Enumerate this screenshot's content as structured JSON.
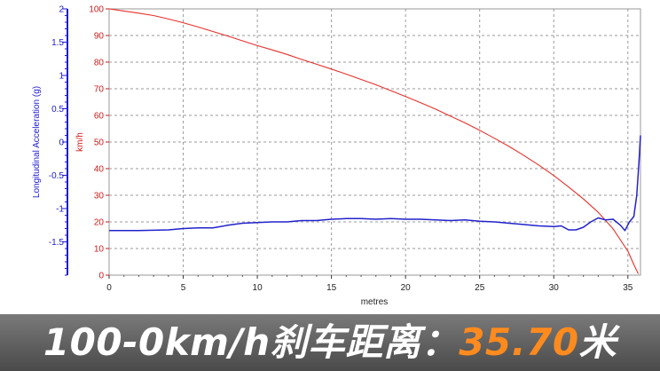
{
  "chart_data": {
    "type": "line",
    "xlabel": "metres",
    "y_left_label": "Longitudinal Acceleration (g)",
    "y_right_label": "km/h",
    "x_ticks": [
      0,
      5,
      10,
      15,
      20,
      25,
      30,
      35
    ],
    "xlim": [
      0,
      35.85
    ],
    "speed_ticks": [
      0,
      10,
      20,
      30,
      40,
      50,
      60,
      70,
      80,
      90,
      100
    ],
    "speed_ylim": [
      0,
      100
    ],
    "accel_ticks": [
      "2",
      "1.5",
      "1",
      "0.5",
      "0",
      "-0.5",
      "-1",
      "-1.5"
    ],
    "accel_tick_values": [
      2,
      1.5,
      1,
      0.5,
      0,
      -0.5,
      -1,
      -1.5
    ],
    "accel_ylim": [
      -2,
      2
    ],
    "grid": true,
    "series": [
      {
        "axis": "speed",
        "color": "#e8302a",
        "points": [
          [
            0,
            100
          ],
          [
            1,
            99.2
          ],
          [
            2,
            98.4
          ],
          [
            3,
            97.5
          ],
          [
            4,
            96.2
          ],
          [
            5,
            94.8
          ],
          [
            6,
            93.2
          ],
          [
            7,
            91.5
          ],
          [
            8,
            89.8
          ],
          [
            9,
            88
          ],
          [
            10,
            86.2
          ],
          [
            11,
            84.6
          ],
          [
            12,
            82.9
          ],
          [
            13,
            81
          ],
          [
            14,
            79.2
          ],
          [
            15,
            77.4
          ],
          [
            16,
            75.5
          ],
          [
            17,
            73.5
          ],
          [
            18,
            71.5
          ],
          [
            19,
            69.3
          ],
          [
            20,
            67.1
          ],
          [
            21,
            64.8
          ],
          [
            22,
            62.4
          ],
          [
            23,
            59.8
          ],
          [
            24,
            57.2
          ],
          [
            25,
            54.4
          ],
          [
            26,
            51.4
          ],
          [
            27,
            48.3
          ],
          [
            28,
            44.9
          ],
          [
            29,
            41.3
          ],
          [
            30,
            37.4
          ],
          [
            31,
            33.1
          ],
          [
            32,
            28.6
          ],
          [
            33,
            23.6
          ],
          [
            34,
            17.4
          ],
          [
            35,
            9
          ],
          [
            35.4,
            4
          ],
          [
            35.7,
            0.5
          ]
        ]
      },
      {
        "axis": "accel",
        "color": "#2222cc",
        "points": [
          [
            0,
            -1.33
          ],
          [
            2,
            -1.33
          ],
          [
            4,
            -1.32
          ],
          [
            5,
            -1.3
          ],
          [
            6,
            -1.29
          ],
          [
            7,
            -1.29
          ],
          [
            8,
            -1.25
          ],
          [
            9,
            -1.22
          ],
          [
            10,
            -1.21
          ],
          [
            11,
            -1.2
          ],
          [
            12,
            -1.2
          ],
          [
            13,
            -1.18
          ],
          [
            14,
            -1.18
          ],
          [
            15,
            -1.16
          ],
          [
            16,
            -1.15
          ],
          [
            17,
            -1.15
          ],
          [
            18,
            -1.16
          ],
          [
            19,
            -1.15
          ],
          [
            20,
            -1.16
          ],
          [
            21,
            -1.16
          ],
          [
            22,
            -1.17
          ],
          [
            23,
            -1.18
          ],
          [
            24,
            -1.17
          ],
          [
            25,
            -1.19
          ],
          [
            26,
            -1.2
          ],
          [
            27,
            -1.22
          ],
          [
            28,
            -1.24
          ],
          [
            29,
            -1.26
          ],
          [
            30,
            -1.27
          ],
          [
            30.5,
            -1.26
          ],
          [
            31,
            -1.32
          ],
          [
            31.5,
            -1.32
          ],
          [
            32,
            -1.28
          ],
          [
            32.5,
            -1.2
          ],
          [
            33,
            -1.14
          ],
          [
            33.5,
            -1.17
          ],
          [
            34,
            -1.16
          ],
          [
            34.5,
            -1.25
          ],
          [
            34.8,
            -1.33
          ],
          [
            35.1,
            -1.2
          ],
          [
            35.4,
            -1.12
          ],
          [
            35.6,
            -0.8
          ],
          [
            35.75,
            -0.3
          ],
          [
            35.85,
            0.1
          ]
        ]
      }
    ]
  },
  "caption": {
    "main": "100-0km/h刹车距离：",
    "value": "35.70",
    "unit": "米"
  }
}
